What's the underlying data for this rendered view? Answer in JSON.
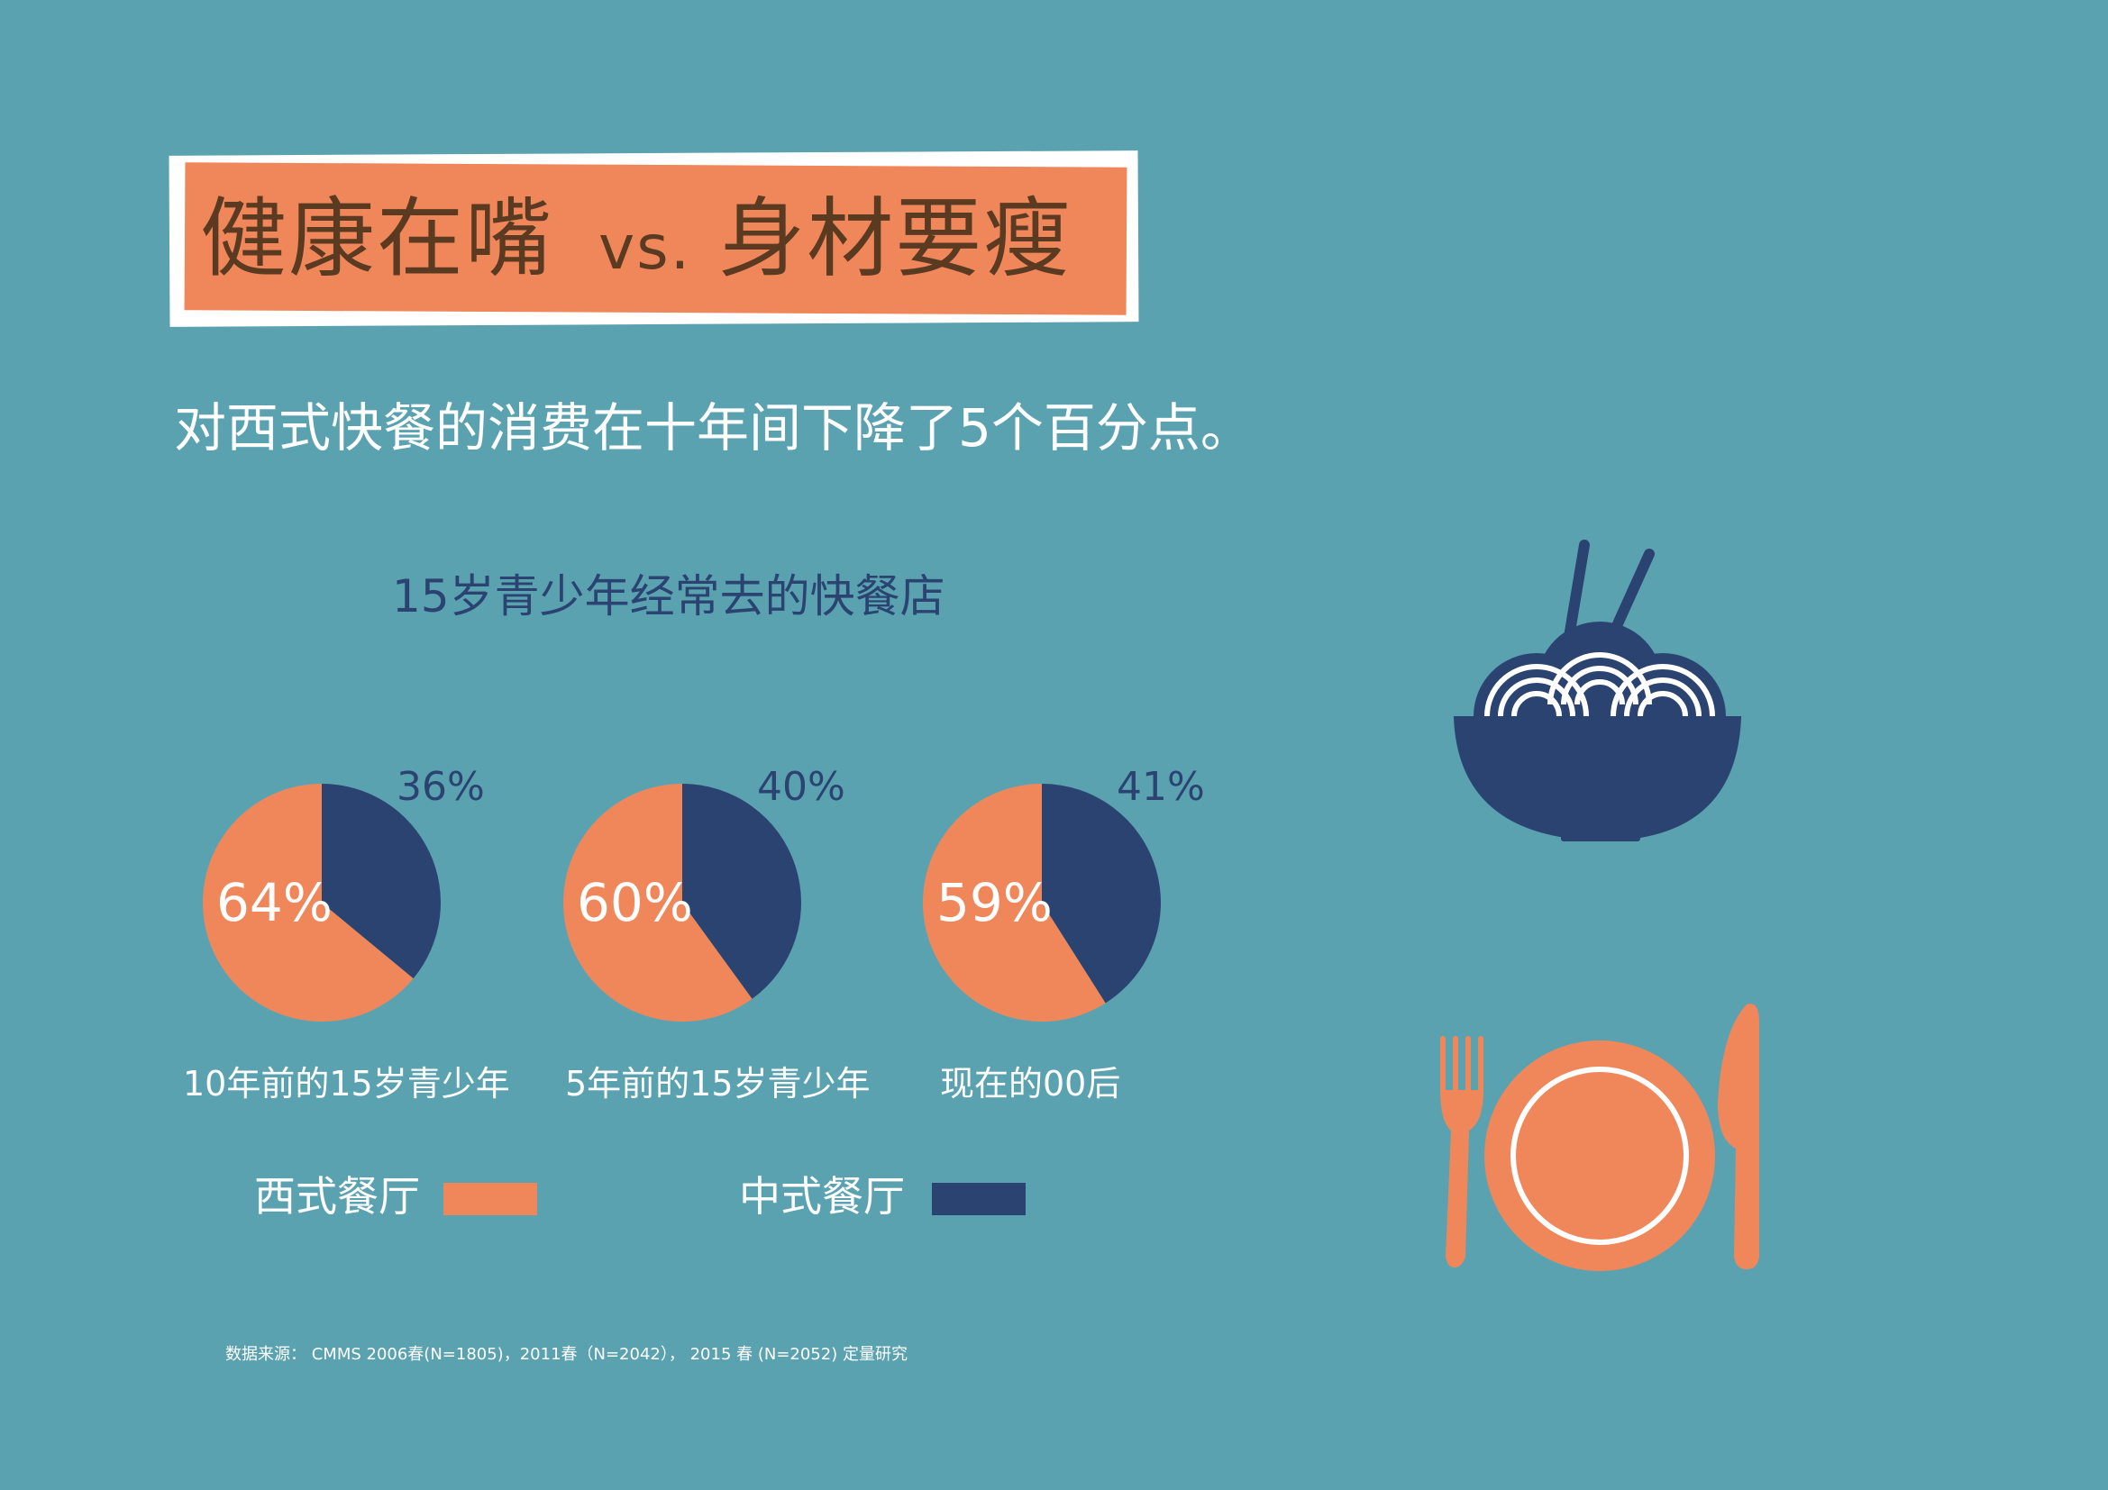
{
  "title": {
    "left": "健康在嘴",
    "vs": "vs.",
    "right": "身材要瘦"
  },
  "subtitle": "对西式快餐的消费在十年间下降了5个百分点。",
  "source": "数据来源： CMMS 2006春(N=1805)，2011春（N=2042），  2015 春 (N=2052)  定量研究",
  "legend": [
    {
      "label": "西式餐厅",
      "color": "#f0875a"
    },
    {
      "label": "中式餐厅",
      "color": "#2b4370"
    }
  ],
  "icons": {
    "bowl": "noodle-bowl-icon",
    "plate": "plate-fork-knife-icon"
  },
  "colors": {
    "background": "#5ba2b1",
    "orange": "#f0875a",
    "navy": "#2b4370",
    "title_text": "#5b3a22"
  },
  "chart_data": {
    "type": "pie",
    "title": "15岁青少年经常去的快餐店",
    "series_names": [
      "西式餐厅",
      "中式餐厅"
    ],
    "categories": [
      "10年前的15岁青少年",
      "5年前的15岁青少年",
      "现在的00后"
    ],
    "pies": [
      {
        "category": "10年前的15岁青少年",
        "values": [
          64,
          36
        ],
        "labels": [
          "64%",
          "36%"
        ]
      },
      {
        "category": "5年前的15岁青少年",
        "values": [
          60,
          40
        ],
        "labels": [
          "60%",
          "40%"
        ]
      },
      {
        "category": "现在的00后",
        "values": [
          59,
          41
        ],
        "labels": [
          "59%",
          "41%"
        ]
      }
    ],
    "legend_position": "bottom"
  }
}
